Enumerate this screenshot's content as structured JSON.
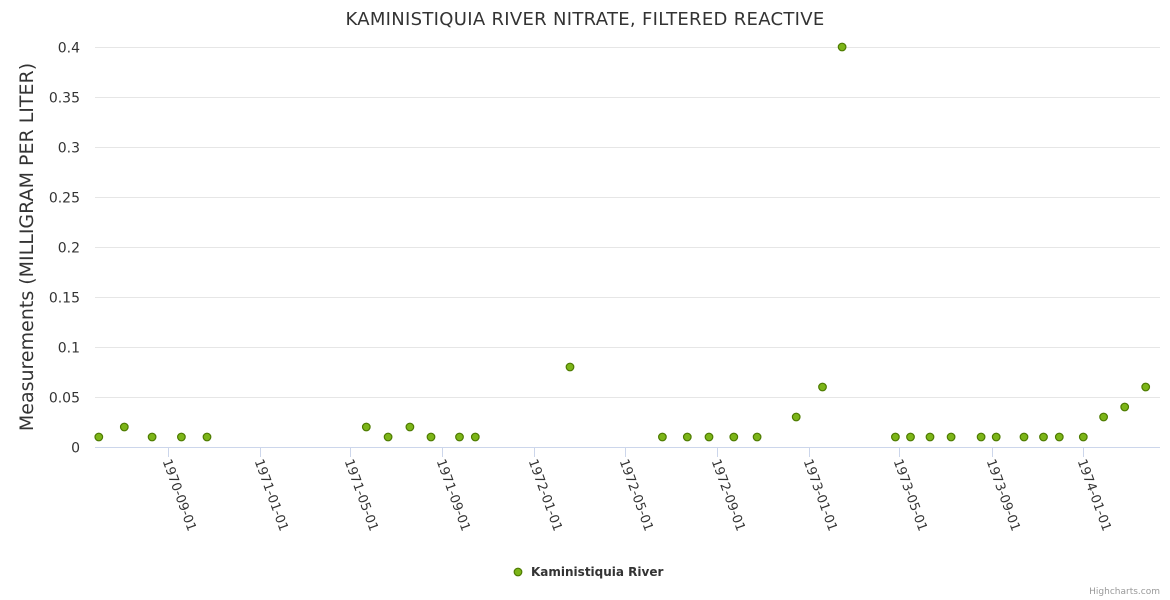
{
  "chart_data": {
    "type": "scatter",
    "title": "KAMINISTIQUIA RIVER NITRATE, FILTERED REACTIVE",
    "xlabel": "",
    "ylabel": "Measurements (MILLIGRAM PER LITER)",
    "ylim": [
      0,
      0.4
    ],
    "y_ticks": [
      0,
      0.05,
      0.1,
      0.15,
      0.2,
      0.25,
      0.3,
      0.35,
      0.4
    ],
    "y_tick_labels": [
      "0",
      "0.05",
      "0.1",
      "0.15",
      "0.2",
      "0.25",
      "0.3",
      "0.35",
      "0.4"
    ],
    "xlim": [
      "1970-05-27",
      "1974-04-13"
    ],
    "x_ticks": [
      "1970-09-01",
      "1971-01-01",
      "1971-05-01",
      "1971-09-01",
      "1972-01-01",
      "1972-05-01",
      "1972-09-01",
      "1973-01-01",
      "1973-05-01",
      "1973-09-01",
      "1974-01-01"
    ],
    "grid": true,
    "legend_position": "bottom-center",
    "series": [
      {
        "name": "Kaministiquia River",
        "color": "#7cb518",
        "stroke": "#4d7a00",
        "points": [
          {
            "x": "1970-06-01",
            "y": 0.01
          },
          {
            "x": "1970-07-05",
            "y": 0.02
          },
          {
            "x": "1970-08-11",
            "y": 0.01
          },
          {
            "x": "1970-09-19",
            "y": 0.01
          },
          {
            "x": "1970-10-23",
            "y": 0.01
          },
          {
            "x": "1971-05-23",
            "y": 0.02
          },
          {
            "x": "1971-06-21",
            "y": 0.01
          },
          {
            "x": "1971-07-20",
            "y": 0.02
          },
          {
            "x": "1971-08-17",
            "y": 0.01
          },
          {
            "x": "1971-09-24",
            "y": 0.01
          },
          {
            "x": "1971-10-15",
            "y": 0.01
          },
          {
            "x": "1972-02-18",
            "y": 0.08
          },
          {
            "x": "1972-06-20",
            "y": 0.01
          },
          {
            "x": "1972-07-23",
            "y": 0.01
          },
          {
            "x": "1972-08-21",
            "y": 0.01
          },
          {
            "x": "1972-09-23",
            "y": 0.01
          },
          {
            "x": "1972-10-24",
            "y": 0.01
          },
          {
            "x": "1972-12-15",
            "y": 0.03
          },
          {
            "x": "1973-01-19",
            "y": 0.06
          },
          {
            "x": "1973-02-14",
            "y": 0.4
          },
          {
            "x": "1973-04-26",
            "y": 0.01
          },
          {
            "x": "1973-05-16",
            "y": 0.01
          },
          {
            "x": "1973-06-11",
            "y": 0.01
          },
          {
            "x": "1973-07-09",
            "y": 0.01
          },
          {
            "x": "1973-08-18",
            "y": 0.01
          },
          {
            "x": "1973-09-07",
            "y": 0.01
          },
          {
            "x": "1973-10-14",
            "y": 0.01
          },
          {
            "x": "1973-11-09",
            "y": 0.01
          },
          {
            "x": "1973-11-30",
            "y": 0.01
          },
          {
            "x": "1974-01-01",
            "y": 0.01
          },
          {
            "x": "1974-01-28",
            "y": 0.03
          },
          {
            "x": "1974-02-25",
            "y": 0.04
          },
          {
            "x": "1974-03-25",
            "y": 0.06
          }
        ]
      }
    ]
  },
  "credits": "Highcharts.com"
}
